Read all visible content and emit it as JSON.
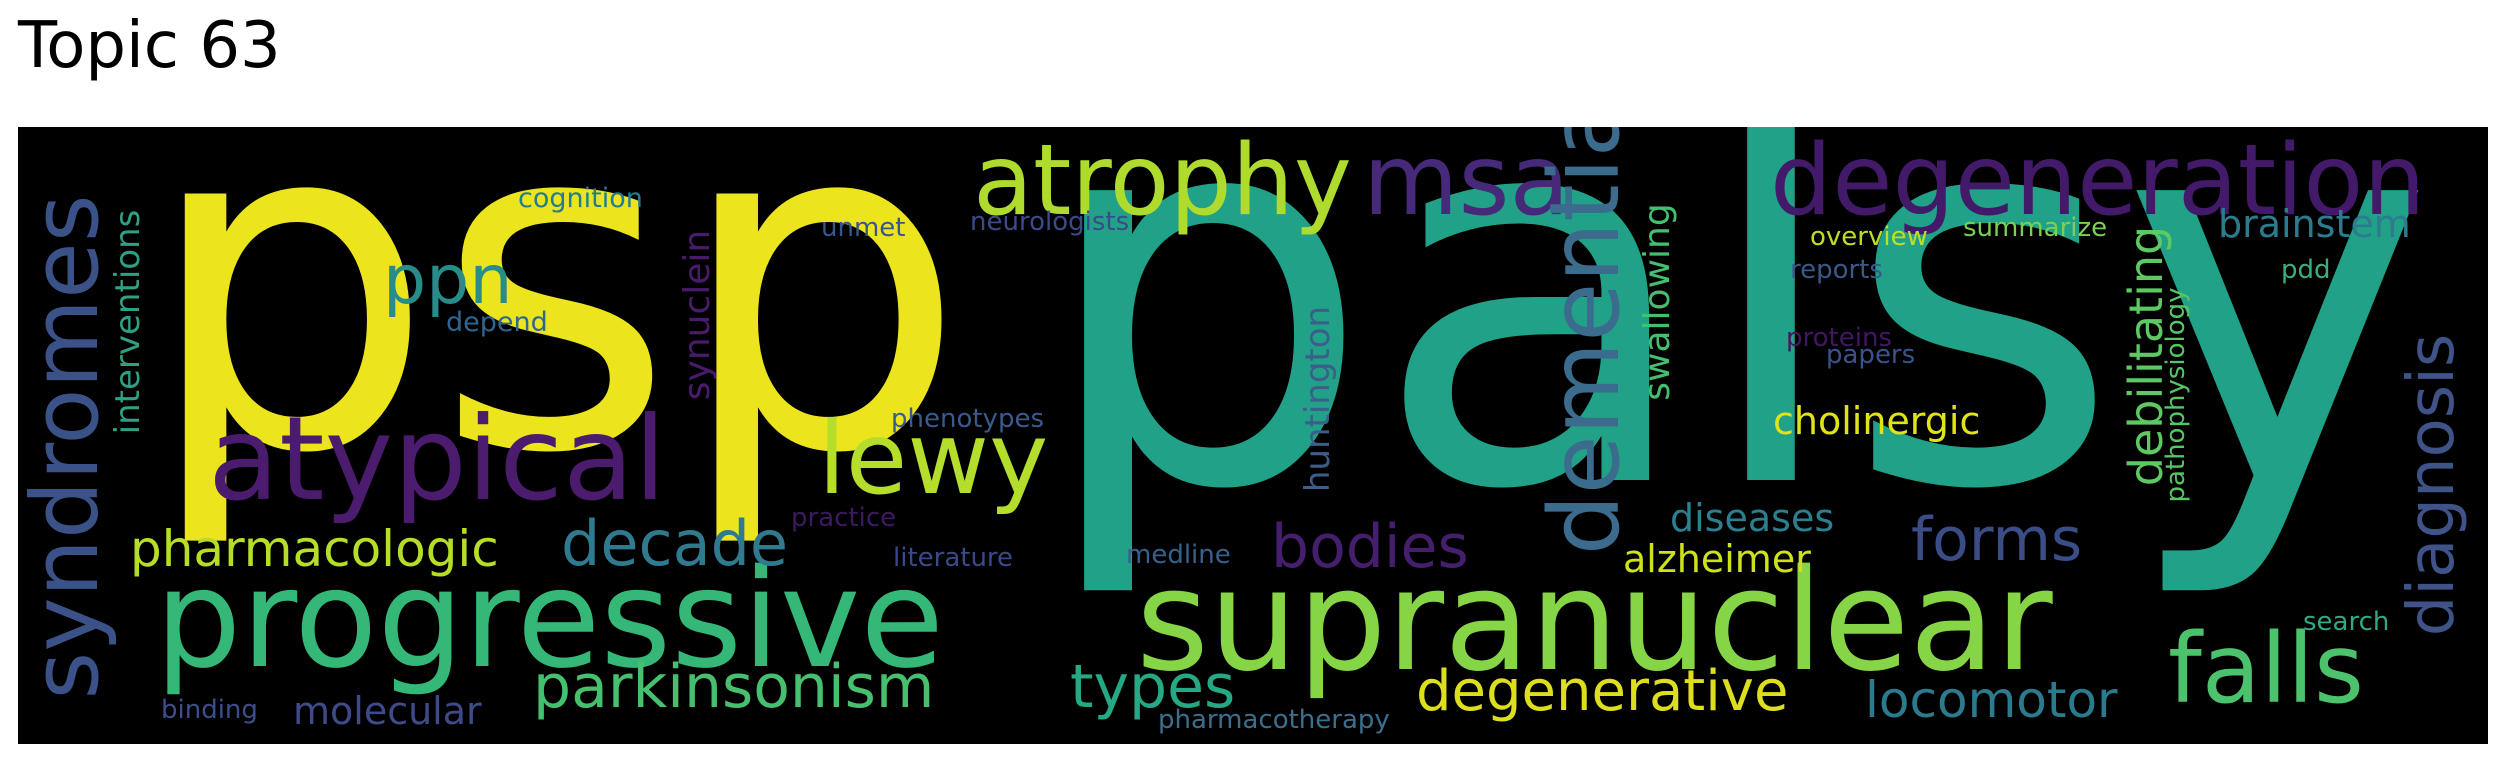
{
  "title": "Topic 63",
  "words": [
    {
      "text": "psp",
      "color": "#ece51e"
    },
    {
      "text": "palsy",
      "color": "#21a187"
    },
    {
      "text": "supranuclear",
      "color": "#86d547"
    },
    {
      "text": "progressive",
      "color": "#35b778"
    },
    {
      "text": "atypical",
      "color": "#4b1c6e"
    },
    {
      "text": "lewy",
      "color": "#b4dd2c"
    },
    {
      "text": "atrophy",
      "color": "#aedb2e"
    },
    {
      "text": "msa",
      "color": "#462a79"
    },
    {
      "text": "degeneration",
      "color": "#431a6a"
    },
    {
      "text": "dementia",
      "color": "#3b6c8d"
    },
    {
      "text": "syndromes",
      "color": "#3b5289"
    },
    {
      "text": "falls",
      "color": "#4cc26c"
    },
    {
      "text": "diagnosis",
      "color": "#3f5388"
    },
    {
      "text": "parkinsonism",
      "color": "#46c06f"
    },
    {
      "text": "degenerative",
      "color": "#ddde1d"
    },
    {
      "text": "pharmacologic",
      "color": "#b7de27"
    },
    {
      "text": "decade",
      "color": "#2f7a8e"
    },
    {
      "text": "bodies",
      "color": "#451f6d"
    },
    {
      "text": "types",
      "color": "#25a884"
    },
    {
      "text": "forms",
      "color": "#3a4d87"
    },
    {
      "text": "locomotor",
      "color": "#2b7b8e"
    },
    {
      "text": "ppn",
      "color": "#278c8a"
    },
    {
      "text": "debilitating",
      "color": "#5ec962"
    },
    {
      "text": "alzheimer",
      "color": "#cde11d"
    },
    {
      "text": "diseases",
      "color": "#2c7f8e"
    },
    {
      "text": "cholinergic",
      "color": "#dfe318"
    },
    {
      "text": "swallowing",
      "color": "#44bf70"
    },
    {
      "text": "huntington",
      "color": "#3b5e8b"
    },
    {
      "text": "brainstem",
      "color": "#2b7c8e"
    },
    {
      "text": "molecular",
      "color": "#3e4a89"
    },
    {
      "text": "interventions",
      "color": "#2fa084"
    },
    {
      "text": "synuclein",
      "color": "#4a1b6b"
    },
    {
      "text": "cognition",
      "color": "#267c8e"
    },
    {
      "text": "depend",
      "color": "#30658e"
    },
    {
      "text": "unmet",
      "color": "#39568c"
    },
    {
      "text": "neurologists",
      "color": "#3d4a89"
    },
    {
      "text": "phenotypes",
      "color": "#3a5a8c"
    },
    {
      "text": "practice",
      "color": "#3d1a60"
    },
    {
      "text": "literature",
      "color": "#3a4a86"
    },
    {
      "text": "medline",
      "color": "#36618d"
    },
    {
      "text": "binding",
      "color": "#3c4f8a"
    },
    {
      "text": "pharmacotherapy",
      "color": "#3c6e8e"
    },
    {
      "text": "overview",
      "color": "#bfdd26"
    },
    {
      "text": "summarize",
      "color": "#79d151"
    },
    {
      "text": "reports",
      "color": "#3a5889"
    },
    {
      "text": "proteins",
      "color": "#421761"
    },
    {
      "text": "papers",
      "color": "#3b538b"
    },
    {
      "text": "pdd",
      "color": "#3cae7b"
    },
    {
      "text": "pathophysiology",
      "color": "#56c565"
    },
    {
      "text": "search",
      "color": "#32a886"
    }
  ]
}
